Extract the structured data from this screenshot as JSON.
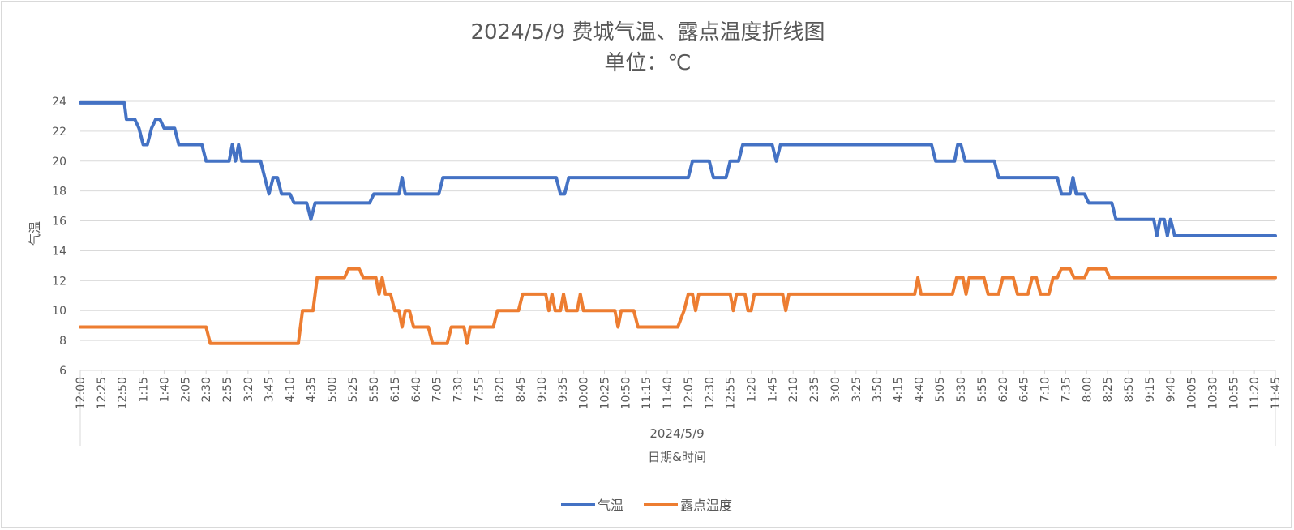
{
  "chart_data": {
    "type": "line",
    "title": "2024/5/9 费城气温、露点温度折线图",
    "subtitle": "单位：℃",
    "ylabel": "气温",
    "xlabel": "日期&时间",
    "x_group_label": "2024/5/9",
    "ylim": [
      6,
      24
    ],
    "yticks": [
      6,
      8,
      10,
      12,
      14,
      16,
      18,
      20,
      22,
      24
    ],
    "grid": true,
    "legend_position": "bottom",
    "x_tick_labels": [
      "12:00",
      "12:25",
      "12:50",
      "1:15",
      "1:40",
      "2:05",
      "2:30",
      "2:55",
      "3:20",
      "3:45",
      "4:10",
      "4:35",
      "5:00",
      "5:25",
      "5:50",
      "6:15",
      "6:40",
      "7:05",
      "7:30",
      "7:55",
      "8:20",
      "8:45",
      "9:10",
      "9:35",
      "10:00",
      "10:25",
      "10:50",
      "11:15",
      "11:40",
      "12:05",
      "12:30",
      "12:55",
      "1:20",
      "1:45",
      "2:10",
      "2:35",
      "3:00",
      "3:25",
      "3:50",
      "4:15",
      "4:40",
      "5:05",
      "5:30",
      "5:55",
      "6:20",
      "6:45",
      "7:10",
      "7:35",
      "8:00",
      "8:25",
      "8:50",
      "9:15",
      "9:40",
      "10:05",
      "10:30",
      "10:55",
      "11:20",
      "11:45"
    ],
    "series": [
      {
        "name": "气温",
        "color": "#4472c4",
        "points": [
          [
            0,
            23.9
          ],
          [
            2.1,
            23.9
          ],
          [
            2.2,
            22.8
          ],
          [
            2.6,
            22.8
          ],
          [
            2.8,
            22.2
          ],
          [
            3.0,
            21.1
          ],
          [
            3.2,
            21.1
          ],
          [
            3.4,
            22.2
          ],
          [
            3.6,
            22.8
          ],
          [
            3.8,
            22.8
          ],
          [
            4.0,
            22.2
          ],
          [
            4.5,
            22.2
          ],
          [
            4.7,
            21.1
          ],
          [
            5.8,
            21.1
          ],
          [
            6.0,
            20.0
          ],
          [
            7.1,
            20.0
          ],
          [
            7.25,
            21.1
          ],
          [
            7.4,
            20.0
          ],
          [
            7.55,
            21.1
          ],
          [
            7.7,
            20.0
          ],
          [
            8.6,
            20.0
          ],
          [
            8.8,
            18.9
          ],
          [
            9.0,
            17.8
          ],
          [
            9.2,
            18.9
          ],
          [
            9.4,
            18.9
          ],
          [
            9.6,
            17.8
          ],
          [
            10.0,
            17.8
          ],
          [
            10.2,
            17.2
          ],
          [
            10.8,
            17.2
          ],
          [
            11.0,
            16.1
          ],
          [
            11.2,
            17.2
          ],
          [
            13.8,
            17.2
          ],
          [
            14.0,
            17.8
          ],
          [
            15.2,
            17.8
          ],
          [
            15.35,
            18.9
          ],
          [
            15.5,
            17.8
          ],
          [
            17.1,
            17.8
          ],
          [
            17.3,
            18.9
          ],
          [
            22.7,
            18.9
          ],
          [
            22.9,
            17.8
          ],
          [
            23.1,
            17.8
          ],
          [
            23.3,
            18.9
          ],
          [
            29.0,
            18.9
          ],
          [
            29.2,
            20.0
          ],
          [
            30.0,
            20.0
          ],
          [
            30.2,
            18.9
          ],
          [
            30.8,
            18.9
          ],
          [
            31.0,
            20.0
          ],
          [
            31.4,
            20.0
          ],
          [
            31.6,
            21.1
          ],
          [
            33.0,
            21.1
          ],
          [
            33.2,
            20.0
          ],
          [
            33.4,
            21.1
          ],
          [
            40.6,
            21.1
          ],
          [
            40.8,
            20.0
          ],
          [
            41.7,
            20.0
          ],
          [
            41.85,
            21.1
          ],
          [
            42.0,
            21.1
          ],
          [
            42.2,
            20.0
          ],
          [
            43.6,
            20.0
          ],
          [
            43.8,
            18.9
          ],
          [
            46.6,
            18.9
          ],
          [
            46.8,
            17.8
          ],
          [
            47.2,
            17.8
          ],
          [
            47.35,
            18.9
          ],
          [
            47.5,
            17.8
          ],
          [
            47.9,
            17.8
          ],
          [
            48.1,
            17.2
          ],
          [
            49.2,
            17.2
          ],
          [
            49.4,
            16.1
          ],
          [
            51.2,
            16.1
          ],
          [
            51.35,
            15.0
          ],
          [
            51.5,
            16.1
          ],
          [
            51.7,
            16.1
          ],
          [
            51.85,
            15.0
          ],
          [
            52.0,
            16.1
          ],
          [
            52.2,
            15.0
          ],
          [
            57,
            15.0
          ]
        ]
      },
      {
        "name": "露点温度",
        "color": "#ed7d31",
        "points": [
          [
            0,
            8.9
          ],
          [
            6.0,
            8.9
          ],
          [
            6.2,
            7.8
          ],
          [
            10.4,
            7.8
          ],
          [
            10.6,
            10.0
          ],
          [
            11.1,
            10.0
          ],
          [
            11.3,
            12.2
          ],
          [
            12.6,
            12.2
          ],
          [
            12.8,
            12.8
          ],
          [
            13.3,
            12.8
          ],
          [
            13.5,
            12.2
          ],
          [
            14.1,
            12.2
          ],
          [
            14.25,
            11.1
          ],
          [
            14.4,
            12.2
          ],
          [
            14.55,
            11.1
          ],
          [
            14.8,
            11.1
          ],
          [
            15.0,
            10.0
          ],
          [
            15.2,
            10.0
          ],
          [
            15.35,
            8.9
          ],
          [
            15.5,
            10.0
          ],
          [
            15.7,
            10.0
          ],
          [
            15.9,
            8.9
          ],
          [
            16.6,
            8.9
          ],
          [
            16.8,
            7.8
          ],
          [
            17.5,
            7.8
          ],
          [
            17.7,
            8.9
          ],
          [
            18.3,
            8.9
          ],
          [
            18.45,
            7.8
          ],
          [
            18.6,
            8.9
          ],
          [
            19.7,
            8.9
          ],
          [
            19.9,
            10.0
          ],
          [
            20.9,
            10.0
          ],
          [
            21.1,
            11.1
          ],
          [
            22.2,
            11.1
          ],
          [
            22.35,
            10.0
          ],
          [
            22.5,
            11.1
          ],
          [
            22.65,
            10.0
          ],
          [
            22.9,
            10.0
          ],
          [
            23.05,
            11.1
          ],
          [
            23.2,
            10.0
          ],
          [
            23.7,
            10.0
          ],
          [
            23.85,
            11.1
          ],
          [
            24.0,
            10.0
          ],
          [
            25.5,
            10.0
          ],
          [
            25.65,
            8.9
          ],
          [
            25.8,
            10.0
          ],
          [
            26.4,
            10.0
          ],
          [
            26.6,
            8.9
          ],
          [
            28.5,
            8.9
          ],
          [
            28.8,
            10.0
          ],
          [
            29.0,
            11.1
          ],
          [
            29.2,
            11.1
          ],
          [
            29.35,
            10.0
          ],
          [
            29.5,
            11.1
          ],
          [
            31.0,
            11.1
          ],
          [
            31.15,
            10.0
          ],
          [
            31.3,
            11.1
          ],
          [
            31.7,
            11.1
          ],
          [
            31.85,
            10.0
          ],
          [
            32.0,
            10.0
          ],
          [
            32.15,
            11.1
          ],
          [
            33.5,
            11.1
          ],
          [
            33.65,
            10.0
          ],
          [
            33.8,
            11.1
          ],
          [
            39.8,
            11.1
          ],
          [
            39.95,
            12.2
          ],
          [
            40.1,
            11.1
          ],
          [
            41.6,
            11.1
          ],
          [
            41.8,
            12.2
          ],
          [
            42.1,
            12.2
          ],
          [
            42.25,
            11.1
          ],
          [
            42.4,
            12.2
          ],
          [
            43.1,
            12.2
          ],
          [
            43.3,
            11.1
          ],
          [
            43.8,
            11.1
          ],
          [
            44.0,
            12.2
          ],
          [
            44.5,
            12.2
          ],
          [
            44.7,
            11.1
          ],
          [
            45.2,
            11.1
          ],
          [
            45.4,
            12.2
          ],
          [
            45.6,
            12.2
          ],
          [
            45.8,
            11.1
          ],
          [
            46.2,
            11.1
          ],
          [
            46.4,
            12.2
          ],
          [
            46.6,
            12.2
          ],
          [
            46.8,
            12.8
          ],
          [
            47.2,
            12.8
          ],
          [
            47.4,
            12.2
          ],
          [
            47.9,
            12.2
          ],
          [
            48.1,
            12.8
          ],
          [
            48.9,
            12.8
          ],
          [
            49.1,
            12.2
          ],
          [
            57,
            12.2
          ]
        ]
      }
    ]
  }
}
